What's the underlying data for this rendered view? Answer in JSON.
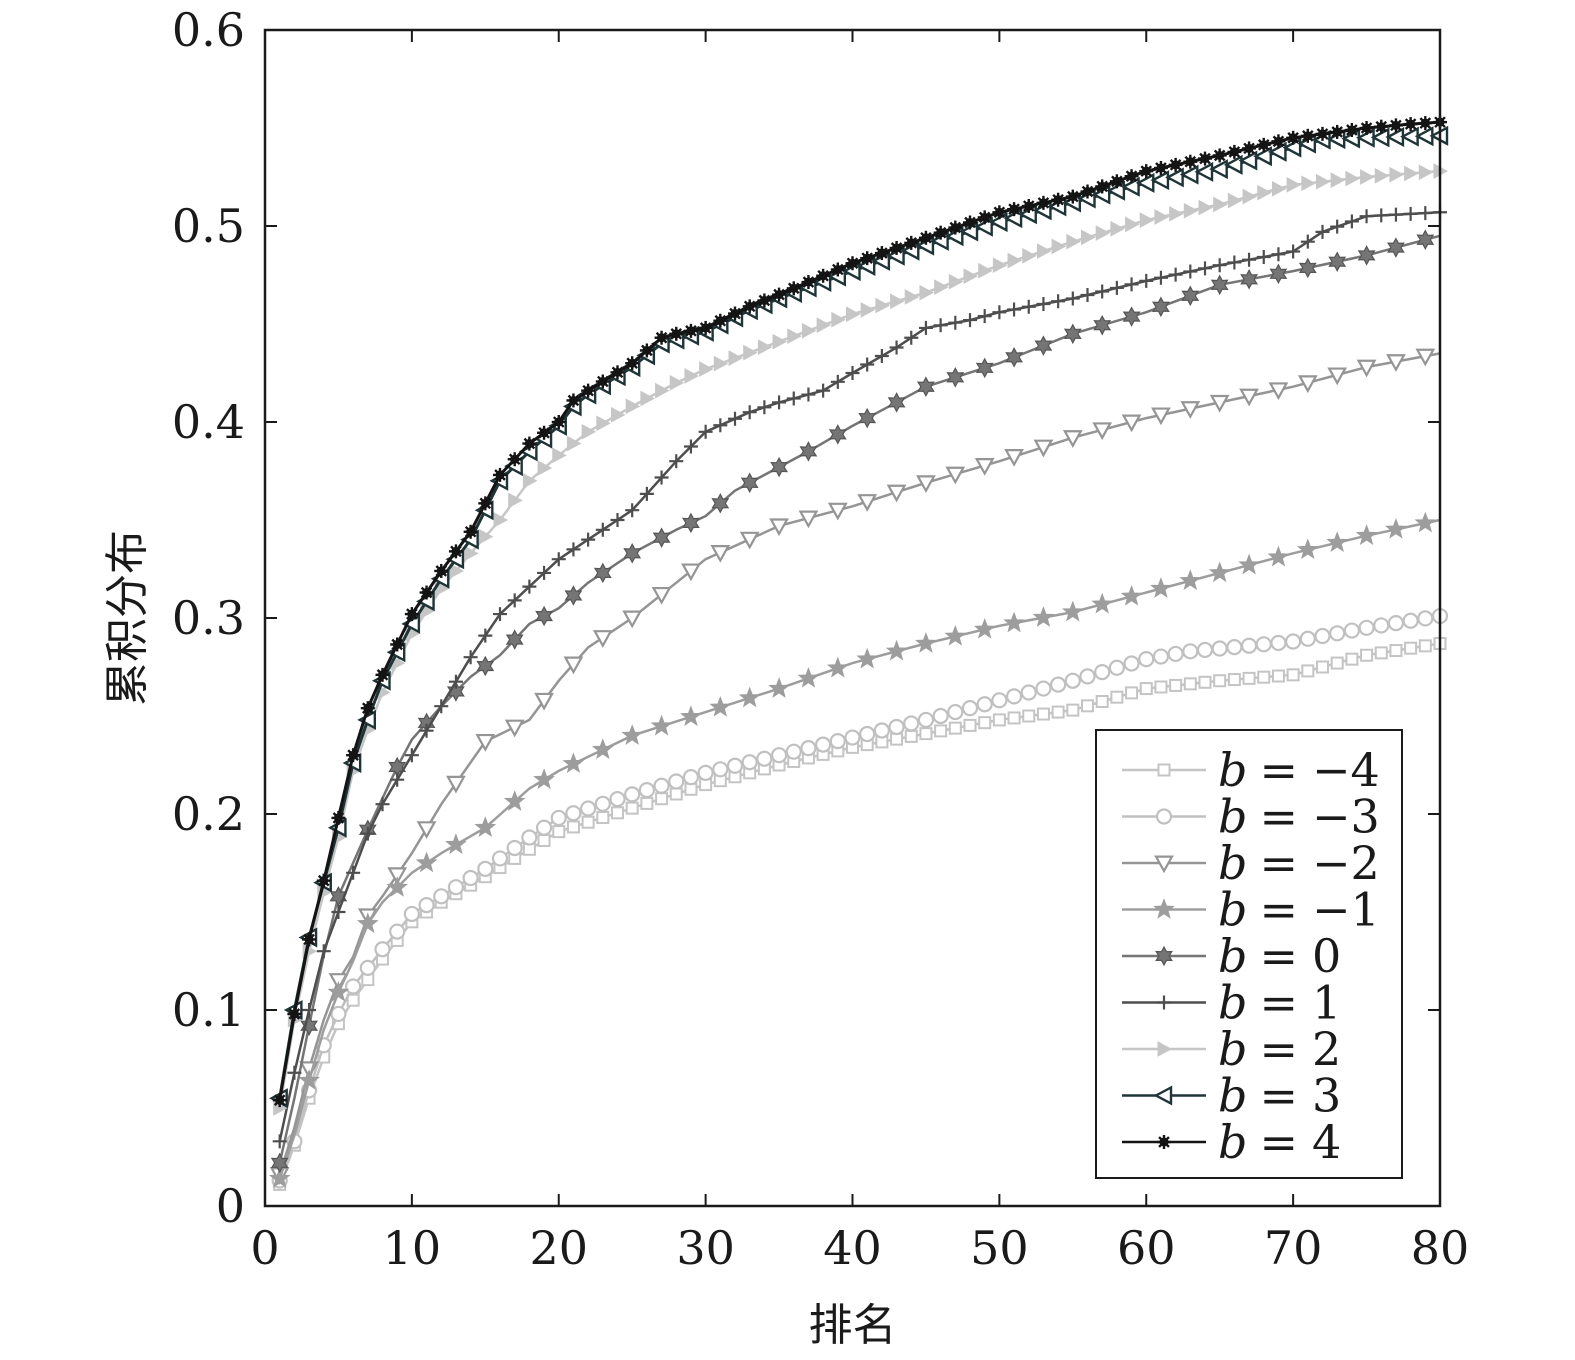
{
  "chart_data": {
    "type": "line",
    "title": "",
    "xlabel": "排名",
    "ylabel": "累积分布",
    "xlim": [
      0,
      80
    ],
    "ylim": [
      0,
      0.6
    ],
    "xticks": [
      0,
      10,
      20,
      30,
      40,
      50,
      60,
      70,
      80
    ],
    "yticks": [
      0,
      0.1,
      0.2,
      0.3,
      0.4,
      0.5,
      0.6
    ],
    "xtick_labels": [
      "0",
      "10",
      "20",
      "30",
      "40",
      "50",
      "60",
      "70",
      "80"
    ],
    "ytick_labels": [
      "0",
      "0.1",
      "0.2",
      "0.3",
      "0.4",
      "0.5",
      "0.6"
    ],
    "grid": false,
    "legend_position": "bottom-right",
    "series": [
      {
        "name": "b = −4",
        "var": "b",
        "value_label": "−4",
        "color": "#c4c4c4",
        "marker": "square",
        "marker_every": 1,
        "points": [
          [
            1,
            0.011
          ],
          [
            2,
            0.031
          ],
          [
            3,
            0.055
          ],
          [
            4,
            0.076
          ],
          [
            5,
            0.093
          ],
          [
            6,
            0.105
          ],
          [
            8,
            0.126
          ],
          [
            10,
            0.145
          ],
          [
            12,
            0.155
          ],
          [
            15,
            0.168
          ],
          [
            18,
            0.182
          ],
          [
            20,
            0.191
          ],
          [
            25,
            0.203
          ],
          [
            30,
            0.215
          ],
          [
            35,
            0.225
          ],
          [
            40,
            0.234
          ],
          [
            45,
            0.241
          ],
          [
            50,
            0.248
          ],
          [
            55,
            0.253
          ],
          [
            60,
            0.264
          ],
          [
            65,
            0.268
          ],
          [
            70,
            0.271
          ],
          [
            75,
            0.281
          ],
          [
            80,
            0.287
          ]
        ]
      },
      {
        "name": "b = −3",
        "var": "b",
        "value_label": "−3",
        "color": "#c0c0c0",
        "marker": "circle",
        "marker_every": 1,
        "points": [
          [
            1,
            0.013
          ],
          [
            2,
            0.033
          ],
          [
            3,
            0.059
          ],
          [
            4,
            0.082
          ],
          [
            5,
            0.098
          ],
          [
            6,
            0.112
          ],
          [
            8,
            0.131
          ],
          [
            10,
            0.149
          ],
          [
            12,
            0.158
          ],
          [
            15,
            0.172
          ],
          [
            18,
            0.188
          ],
          [
            20,
            0.198
          ],
          [
            25,
            0.21
          ],
          [
            30,
            0.221
          ],
          [
            35,
            0.23
          ],
          [
            40,
            0.239
          ],
          [
            45,
            0.248
          ],
          [
            50,
            0.258
          ],
          [
            55,
            0.268
          ],
          [
            60,
            0.279
          ],
          [
            63,
            0.283
          ],
          [
            70,
            0.288
          ],
          [
            75,
            0.295
          ],
          [
            80,
            0.301
          ]
        ]
      },
      {
        "name": "b = −2",
        "var": "b",
        "value_label": "−2",
        "color": "#959595",
        "marker": "triangle-down",
        "marker_every": 2,
        "points": [
          [
            1,
            0.016
          ],
          [
            2,
            0.04
          ],
          [
            3,
            0.07
          ],
          [
            4,
            0.095
          ],
          [
            5,
            0.115
          ],
          [
            6,
            0.127
          ],
          [
            7,
            0.148
          ],
          [
            8,
            0.158
          ],
          [
            10,
            0.18
          ],
          [
            12,
            0.205
          ],
          [
            15,
            0.237
          ],
          [
            18,
            0.248
          ],
          [
            20,
            0.268
          ],
          [
            22,
            0.285
          ],
          [
            25,
            0.3
          ],
          [
            28,
            0.318
          ],
          [
            30,
            0.33
          ],
          [
            35,
            0.347
          ],
          [
            40,
            0.357
          ],
          [
            45,
            0.369
          ],
          [
            50,
            0.38
          ],
          [
            55,
            0.392
          ],
          [
            60,
            0.402
          ],
          [
            65,
            0.41
          ],
          [
            70,
            0.418
          ],
          [
            75,
            0.428
          ],
          [
            80,
            0.435
          ]
        ]
      },
      {
        "name": "b = −1",
        "var": "b",
        "value_label": "−1",
        "color": "#9d9d9d",
        "marker": "star",
        "marker_every": 2,
        "points": [
          [
            1,
            0.014
          ],
          [
            2,
            0.036
          ],
          [
            3,
            0.064
          ],
          [
            4,
            0.09
          ],
          [
            5,
            0.109
          ],
          [
            6,
            0.125
          ],
          [
            7,
            0.144
          ],
          [
            8,
            0.155
          ],
          [
            10,
            0.17
          ],
          [
            12,
            0.18
          ],
          [
            15,
            0.193
          ],
          [
            18,
            0.213
          ],
          [
            20,
            0.222
          ],
          [
            25,
            0.24
          ],
          [
            30,
            0.252
          ],
          [
            35,
            0.264
          ],
          [
            40,
            0.277
          ],
          [
            45,
            0.287
          ],
          [
            50,
            0.296
          ],
          [
            55,
            0.303
          ],
          [
            60,
            0.313
          ],
          [
            65,
            0.323
          ],
          [
            70,
            0.333
          ],
          [
            75,
            0.342
          ],
          [
            80,
            0.35
          ]
        ]
      },
      {
        "name": "b = 0",
        "var": "b",
        "value_label": "0",
        "color": "#757575",
        "marker": "hexstar",
        "marker_every": 2,
        "points": [
          [
            1,
            0.022
          ],
          [
            2,
            0.055
          ],
          [
            3,
            0.092
          ],
          [
            4,
            0.128
          ],
          [
            5,
            0.158
          ],
          [
            6,
            0.175
          ],
          [
            7,
            0.192
          ],
          [
            8,
            0.208
          ],
          [
            9,
            0.224
          ],
          [
            10,
            0.238
          ],
          [
            12,
            0.255
          ],
          [
            14,
            0.27
          ],
          [
            16,
            0.281
          ],
          [
            18,
            0.297
          ],
          [
            20,
            0.305
          ],
          [
            22,
            0.318
          ],
          [
            25,
            0.333
          ],
          [
            28,
            0.345
          ],
          [
            30,
            0.352
          ],
          [
            32,
            0.365
          ],
          [
            35,
            0.377
          ],
          [
            37,
            0.385
          ],
          [
            40,
            0.398
          ],
          [
            45,
            0.418
          ],
          [
            50,
            0.43
          ],
          [
            55,
            0.445
          ],
          [
            60,
            0.456
          ],
          [
            65,
            0.47
          ],
          [
            70,
            0.477
          ],
          [
            75,
            0.485
          ],
          [
            80,
            0.495
          ]
        ]
      },
      {
        "name": "b = 1",
        "var": "b",
        "value_label": "1",
        "color": "#4e4e4e",
        "marker": "plus",
        "marker_every": 1,
        "points": [
          [
            1,
            0.033
          ],
          [
            2,
            0.068
          ],
          [
            3,
            0.1
          ],
          [
            4,
            0.13
          ],
          [
            5,
            0.15
          ],
          [
            6,
            0.17
          ],
          [
            7,
            0.19
          ],
          [
            8,
            0.205
          ],
          [
            10,
            0.23
          ],
          [
            12,
            0.255
          ],
          [
            14,
            0.28
          ],
          [
            16,
            0.302
          ],
          [
            18,
            0.316
          ],
          [
            20,
            0.33
          ],
          [
            22,
            0.34
          ],
          [
            25,
            0.355
          ],
          [
            28,
            0.38
          ],
          [
            30,
            0.395
          ],
          [
            33,
            0.405
          ],
          [
            35,
            0.41
          ],
          [
            38,
            0.416
          ],
          [
            40,
            0.425
          ],
          [
            43,
            0.438
          ],
          [
            45,
            0.448
          ],
          [
            48,
            0.452
          ],
          [
            50,
            0.456
          ],
          [
            55,
            0.463
          ],
          [
            60,
            0.472
          ],
          [
            65,
            0.48
          ],
          [
            70,
            0.487
          ],
          [
            72,
            0.497
          ],
          [
            75,
            0.505
          ],
          [
            80,
            0.507
          ]
        ]
      },
      {
        "name": "b = 2",
        "var": "b",
        "value_label": "2",
        "color": "#c6c6c6",
        "marker": "triangle-right",
        "marker_every": 1,
        "points": [
          [
            1,
            0.05
          ],
          [
            2,
            0.095
          ],
          [
            3,
            0.13
          ],
          [
            4,
            0.16
          ],
          [
            5,
            0.188
          ],
          [
            6,
            0.222
          ],
          [
            7,
            0.243
          ],
          [
            8,
            0.262
          ],
          [
            10,
            0.292
          ],
          [
            12,
            0.315
          ],
          [
            14,
            0.333
          ],
          [
            16,
            0.35
          ],
          [
            18,
            0.37
          ],
          [
            20,
            0.383
          ],
          [
            22,
            0.395
          ],
          [
            25,
            0.408
          ],
          [
            28,
            0.42
          ],
          [
            30,
            0.427
          ],
          [
            35,
            0.441
          ],
          [
            40,
            0.455
          ],
          [
            45,
            0.466
          ],
          [
            50,
            0.48
          ],
          [
            55,
            0.492
          ],
          [
            60,
            0.503
          ],
          [
            65,
            0.511
          ],
          [
            70,
            0.521
          ],
          [
            75,
            0.525
          ],
          [
            80,
            0.528
          ]
        ]
      },
      {
        "name": "b = 3",
        "var": "b",
        "value_label": "3",
        "color": "#1f3436",
        "marker": "triangle-left",
        "marker_every": 1,
        "points": [
          [
            1,
            0.055
          ],
          [
            2,
            0.1
          ],
          [
            3,
            0.137
          ],
          [
            4,
            0.165
          ],
          [
            5,
            0.193
          ],
          [
            6,
            0.226
          ],
          [
            7,
            0.248
          ],
          [
            8,
            0.268
          ],
          [
            10,
            0.297
          ],
          [
            12,
            0.32
          ],
          [
            14,
            0.34
          ],
          [
            16,
            0.37
          ],
          [
            18,
            0.385
          ],
          [
            20,
            0.398
          ],
          [
            21,
            0.408
          ],
          [
            22,
            0.414
          ],
          [
            25,
            0.428
          ],
          [
            27,
            0.44
          ],
          [
            28,
            0.442
          ],
          [
            30,
            0.446
          ],
          [
            33,
            0.457
          ],
          [
            35,
            0.463
          ],
          [
            40,
            0.477
          ],
          [
            45,
            0.49
          ],
          [
            50,
            0.502
          ],
          [
            55,
            0.512
          ],
          [
            60,
            0.522
          ],
          [
            65,
            0.529
          ],
          [
            70,
            0.54
          ],
          [
            72,
            0.544
          ],
          [
            75,
            0.545
          ],
          [
            80,
            0.546
          ]
        ]
      },
      {
        "name": "b = 4",
        "var": "b",
        "value_label": "4",
        "color": "#141414",
        "marker": "asterisk",
        "marker_every": 1,
        "points": [
          [
            1,
            0.054
          ],
          [
            2,
            0.098
          ],
          [
            3,
            0.136
          ],
          [
            4,
            0.166
          ],
          [
            5,
            0.198
          ],
          [
            6,
            0.23
          ],
          [
            7,
            0.254
          ],
          [
            8,
            0.271
          ],
          [
            10,
            0.302
          ],
          [
            12,
            0.324
          ],
          [
            14,
            0.344
          ],
          [
            16,
            0.373
          ],
          [
            18,
            0.389
          ],
          [
            20,
            0.4
          ],
          [
            21,
            0.411
          ],
          [
            22,
            0.416
          ],
          [
            25,
            0.43
          ],
          [
            27,
            0.443
          ],
          [
            28,
            0.445
          ],
          [
            30,
            0.448
          ],
          [
            33,
            0.459
          ],
          [
            35,
            0.465
          ],
          [
            40,
            0.481
          ],
          [
            45,
            0.494
          ],
          [
            50,
            0.507
          ],
          [
            55,
            0.515
          ],
          [
            60,
            0.528
          ],
          [
            65,
            0.536
          ],
          [
            70,
            0.545
          ],
          [
            75,
            0.55
          ],
          [
            78,
            0.552
          ],
          [
            80,
            0.553
          ]
        ]
      }
    ]
  }
}
